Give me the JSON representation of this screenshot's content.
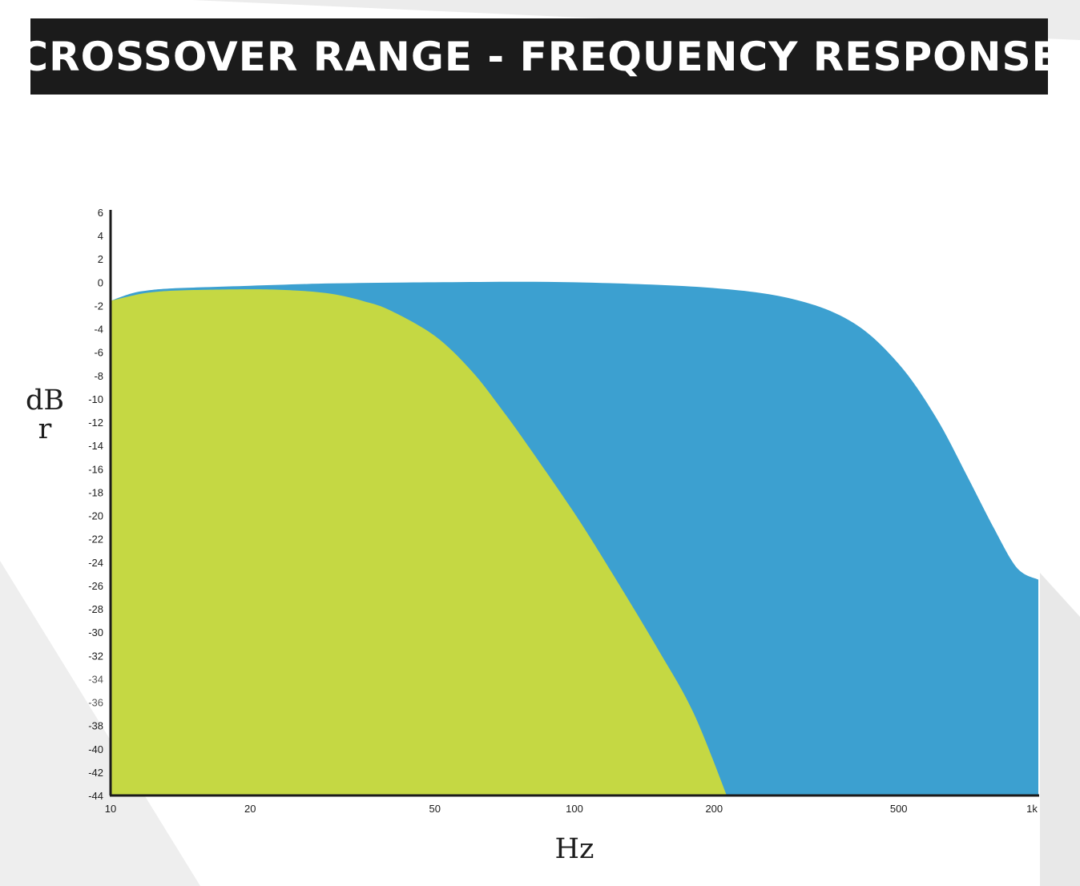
{
  "title": "CROSSOVER RANGE - FREQUENCY RESPONSE",
  "colors": {
    "title_bar": "#1b1b1b",
    "title_text": "#ffffff",
    "low_band": "#c5d843",
    "high_band": "#3ca0d0",
    "axis": "#1b1b1b",
    "background_stripe": "#ececec"
  },
  "chart_data": {
    "type": "area",
    "xscale": "log",
    "xlabel": "Hz",
    "ylabel": "dBr",
    "xlim": [
      10,
      1000
    ],
    "ylim": [
      -44,
      6
    ],
    "xticks": [
      10,
      20,
      50,
      100,
      200,
      500,
      1000
    ],
    "xtick_labels": [
      "10",
      "20",
      "50",
      "100",
      "200",
      "500",
      "1k"
    ],
    "yticks": [
      6,
      4,
      2,
      0,
      -2,
      -4,
      -6,
      -8,
      -10,
      -12,
      -14,
      -16,
      -18,
      -20,
      -22,
      -24,
      -26,
      -28,
      -30,
      -32,
      -34,
      -36,
      -38,
      -40,
      -42,
      -44
    ],
    "grid": false,
    "series": [
      {
        "color": "#3ca0d0",
        "x": [
          10,
          11,
          12,
          14,
          20,
          30,
          50,
          100,
          200,
          300,
          400,
          500,
          600,
          700,
          800,
          900,
          1000
        ],
        "y": [
          -1.6,
          -1.0,
          -0.7,
          -0.5,
          -0.3,
          -0.1,
          0.0,
          0.0,
          -0.5,
          -1.5,
          -3.5,
          -7.0,
          -11.5,
          -16.5,
          -21.0,
          -24.5,
          -25.5
        ]
      },
      {
        "color": "#c5d843",
        "x": [
          10,
          11,
          12,
          14,
          20,
          25,
          30,
          35,
          40,
          50,
          60,
          70,
          80,
          100,
          120,
          150,
          180,
          213
        ],
        "y": [
          -1.6,
          -1.2,
          -0.9,
          -0.7,
          -0.6,
          -0.7,
          -1.0,
          -1.6,
          -2.4,
          -4.6,
          -7.6,
          -11.0,
          -14.2,
          -19.8,
          -24.8,
          -31.2,
          -36.8,
          -44.0
        ]
      }
    ]
  }
}
